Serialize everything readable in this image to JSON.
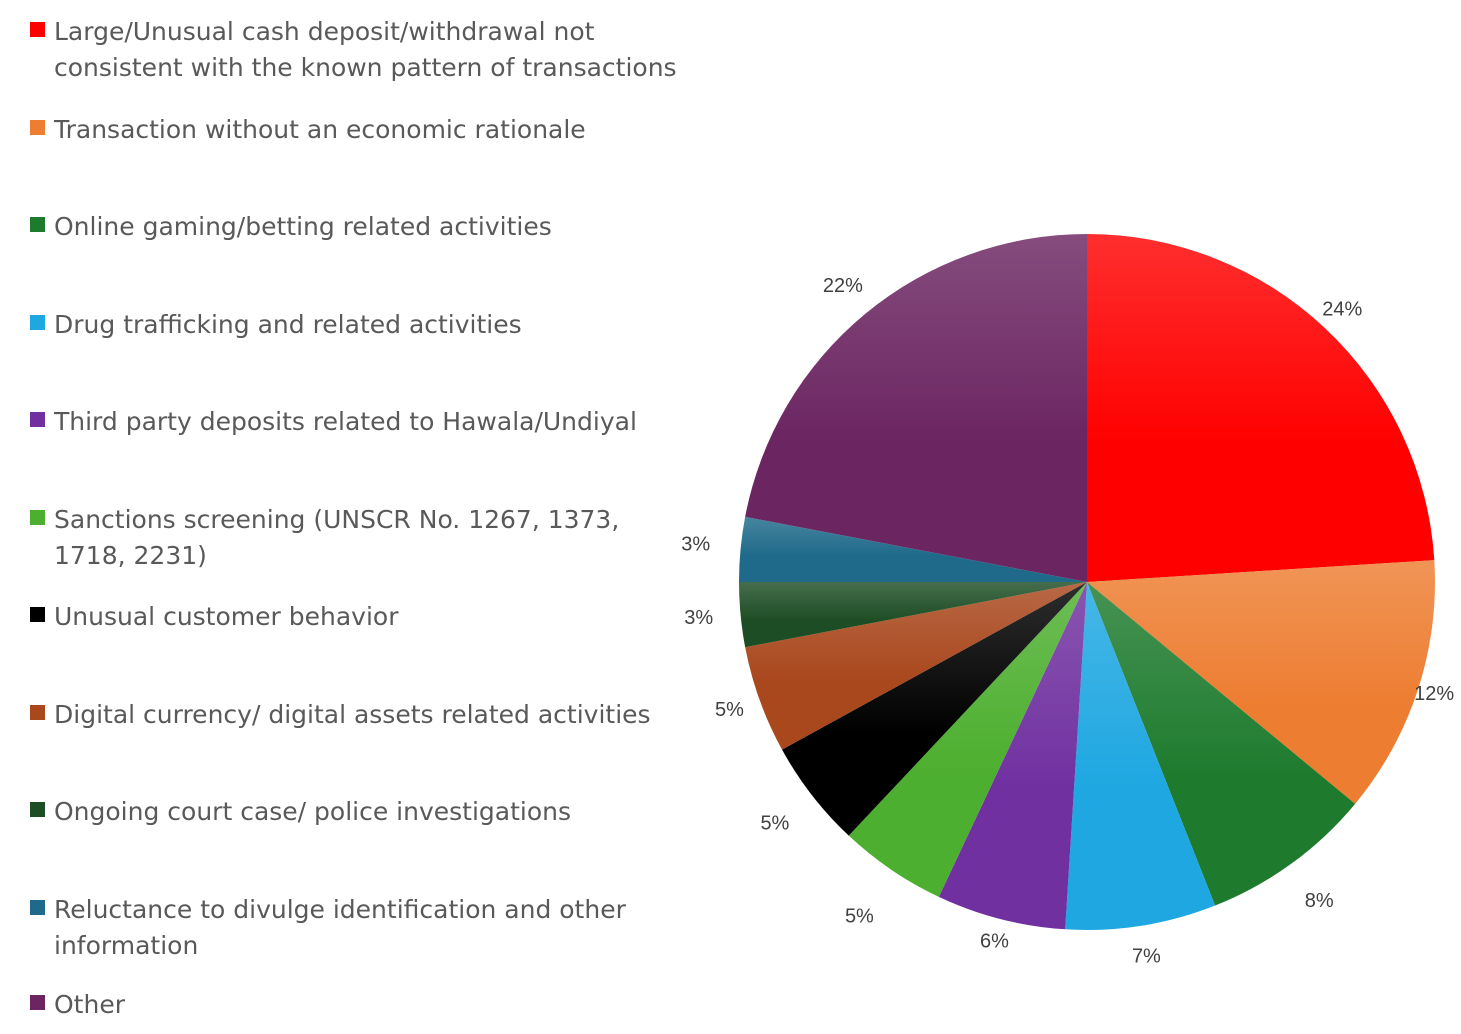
{
  "chart_data": {
    "type": "pie",
    "categories": [
      "Large/Unusual cash deposit/withdrawal not consistent with the known pattern of transactions",
      "Transaction without an economic rationale",
      "Online gaming/betting related activities",
      "Drug trafficking and related activities",
      "Third party deposits related to Hawala/Undiyal",
      "Sanctions screening (UNSCR No. 1267, 1373, 1718, 2231)",
      "Unusual customer behavior",
      "Digital currency/ digital assets related activities",
      "Ongoing court case/ police investigations",
      "Reluctance to divulge identification and other information",
      "Other"
    ],
    "values": [
      24,
      12,
      8,
      7,
      6,
      5,
      5,
      5,
      3,
      3,
      22
    ],
    "labels": [
      "24%",
      "12%",
      "8%",
      "7%",
      "6%",
      "5%",
      "5%",
      "5%",
      "3%",
      "3%",
      "22%"
    ],
    "colors": [
      "#ff0000",
      "#ed7d31",
      "#1e7b2e",
      "#1ea7e1",
      "#7030a0",
      "#4daf2f",
      "#000000",
      "#a9471d",
      "#1d4d24",
      "#1f6a8a",
      "#6b2561"
    ],
    "legend": "left"
  }
}
